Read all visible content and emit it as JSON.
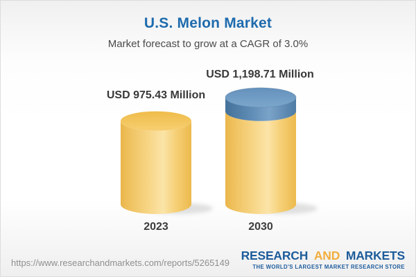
{
  "chart_data": {
    "type": "bar",
    "bar_style": "3d-cylinder",
    "title": "U.S. Melon Market",
    "subtitle": "Market forecast to grow at a CAGR of 3.0%",
    "categories": [
      "2023",
      "2030"
    ],
    "values": [
      975.43,
      1198.71
    ],
    "value_labels": [
      "USD 975.43 Million",
      "USD 1,198.71 Million"
    ],
    "unit": "USD Million",
    "cagr_pct": 3.0,
    "legend": "none",
    "grid": "off",
    "growth_note": "Blue top segment of the 2030 cylinder represents growth above the 2023 level",
    "colors": {
      "base_segment": "#F2C55F",
      "growth_segment": "#6693BE",
      "title_text": "#1E6BAD",
      "subtitle_text": "#4A4A4A",
      "label_text": "#383838"
    }
  },
  "footer": {
    "url": "https://www.researchandmarkets.com/reports/5265149",
    "logo": {
      "word1": "RESEARCH",
      "word2": "AND",
      "word3": "MARKETS",
      "tagline": "THE WORLD'S LARGEST MARKET RESEARCH STORE",
      "blue": "#1E5C9B",
      "gold": "#F2AE3D"
    }
  }
}
